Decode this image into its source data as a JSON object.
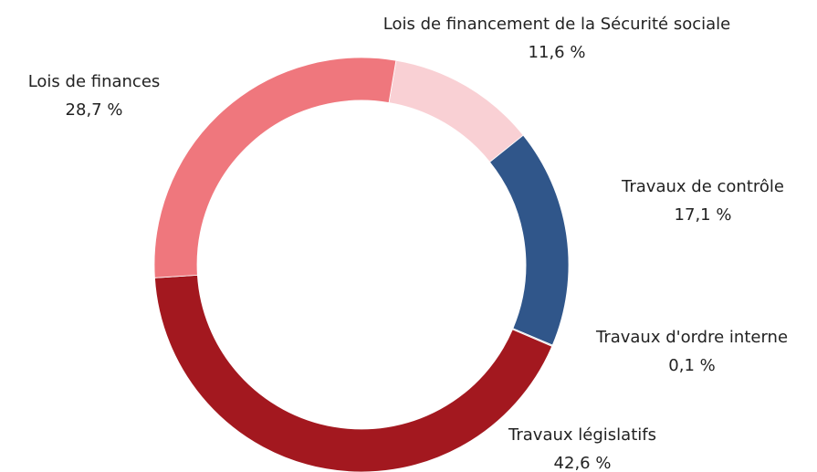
{
  "chart_data": {
    "type": "pie",
    "categories": [
      "Lois de financement de la Sécurité sociale",
      "Travaux de contrôle",
      "Travaux d'ordre interne",
      "Travaux législatifs",
      "Lois de finances"
    ],
    "values": [
      11.6,
      17.1,
      0.1,
      42.6,
      28.7
    ],
    "value_labels": [
      "11,6 %",
      "17,1 %",
      "0,1 %",
      "42,6 %",
      "28,7 %"
    ],
    "colors": [
      "#f9d0d4",
      "#30568a",
      "#d9d9d9",
      "#a3181f",
      "#ef777d"
    ]
  }
}
